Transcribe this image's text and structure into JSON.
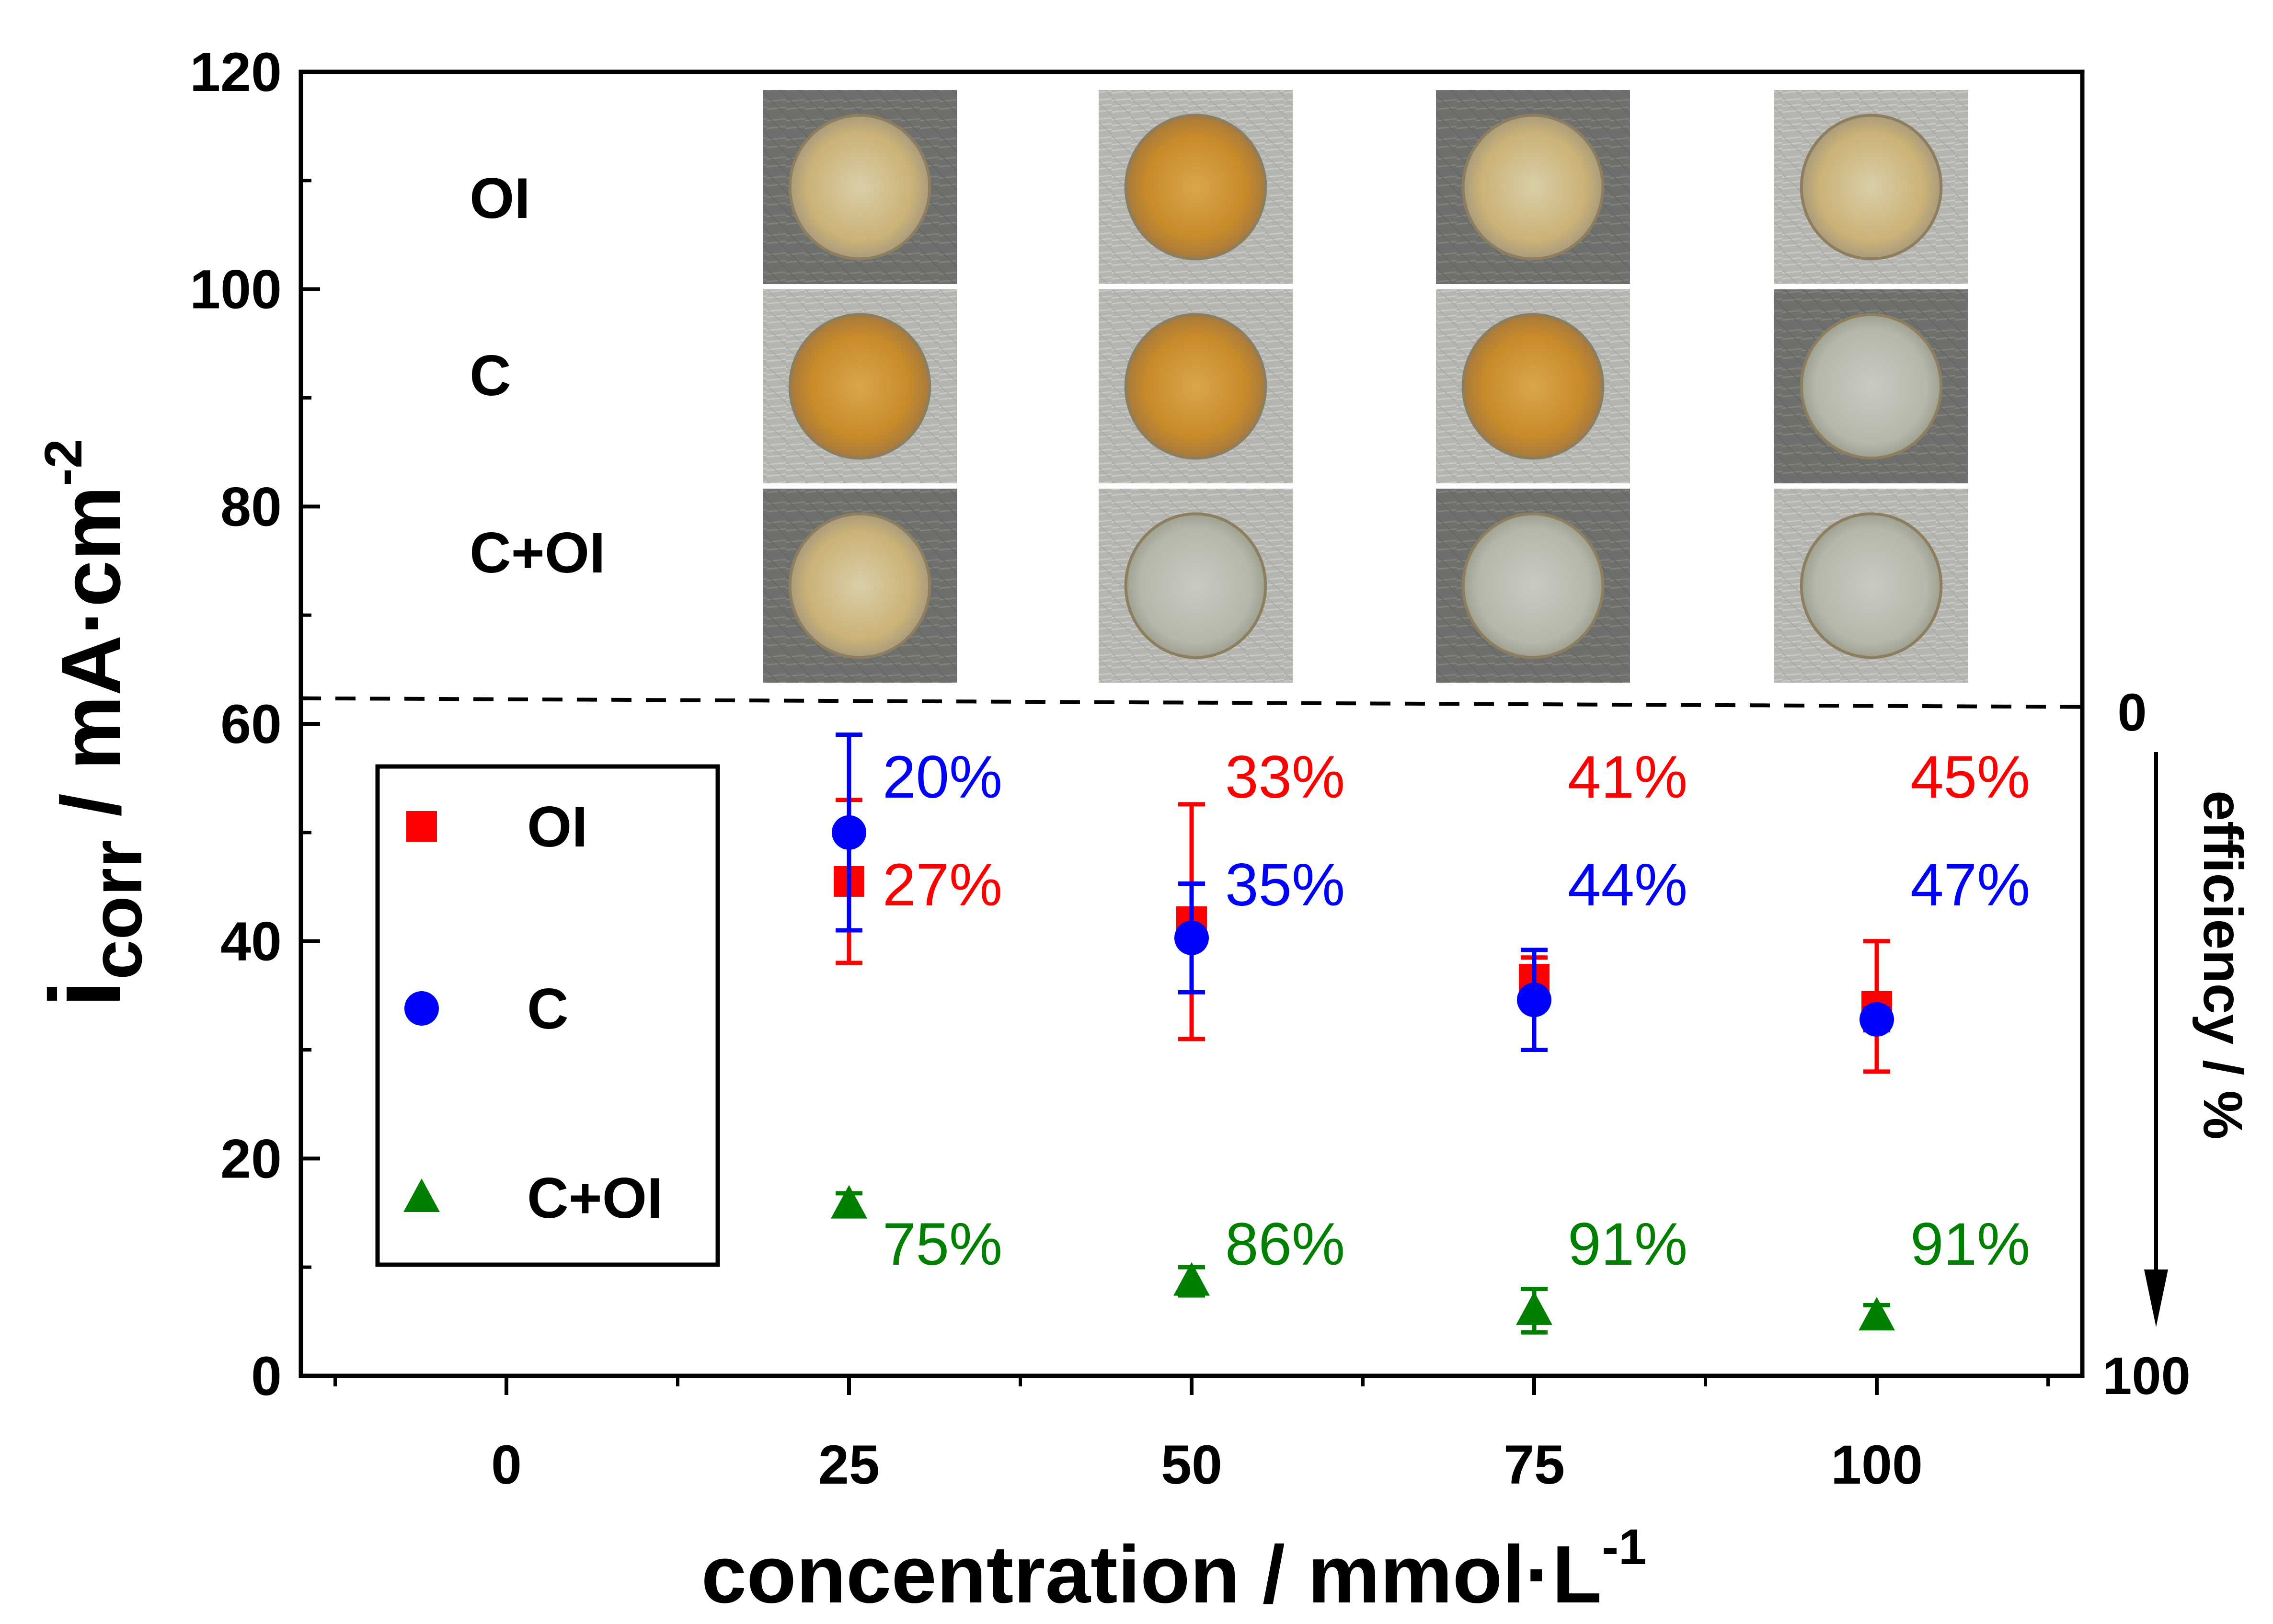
{
  "chart_data": {
    "type": "scatter",
    "title": "",
    "xlabel": {
      "main": "concentration / mmol·L",
      "sup": "-1"
    },
    "ylabel": {
      "main": "i",
      "sub": "corr",
      "rest": " / mA·cm",
      "sup": "-2"
    },
    "right_axis": {
      "label": "efficiency / %",
      "top_value": "0",
      "bottom_value": "100",
      "zero_at": 62
    },
    "xlim": [
      -15,
      115
    ],
    "ylim": [
      0,
      120
    ],
    "x_ticks": [
      0,
      25,
      50,
      75,
      100
    ],
    "y_ticks": [
      0,
      20,
      40,
      60,
      80,
      100,
      120
    ],
    "series": [
      {
        "name": "OI",
        "marker": "square",
        "color": "#ff0000",
        "points": [
          {
            "x": 25,
            "y": 45.5,
            "err": 7.5,
            "efficiency": "27%"
          },
          {
            "x": 50,
            "y": 41.8,
            "err": 10.8,
            "efficiency": "33%"
          },
          {
            "x": 75,
            "y": 36.5,
            "err": 2.0,
            "efficiency": "41%"
          },
          {
            "x": 100,
            "y": 34.0,
            "err": 6.0,
            "efficiency": "45%"
          }
        ]
      },
      {
        "name": "C",
        "marker": "circle",
        "color": "#0000ff",
        "points": [
          {
            "x": 25,
            "y": 50.0,
            "err": 9.0,
            "efficiency": "20%"
          },
          {
            "x": 50,
            "y": 40.3,
            "err": 5.0,
            "efficiency": "35%"
          },
          {
            "x": 75,
            "y": 34.6,
            "err": 4.6,
            "efficiency": "44%"
          },
          {
            "x": 100,
            "y": 32.8,
            "err": 1.0,
            "efficiency": "47%"
          }
        ]
      },
      {
        "name": "C+OI",
        "marker": "triangle",
        "color": "#008000",
        "points": [
          {
            "x": 25,
            "y": 15.8,
            "err": 1.0,
            "efficiency": "75%"
          },
          {
            "x": 50,
            "y": 8.7,
            "err": 1.3,
            "efficiency": "86%"
          },
          {
            "x": 75,
            "y": 6.0,
            "err": 2.0,
            "efficiency": "91%"
          },
          {
            "x": 100,
            "y": 5.5,
            "err": 1.0,
            "efficiency": "91%"
          }
        ]
      }
    ],
    "legend": {
      "position": "lower-left",
      "entries": [
        "OI",
        "C",
        "C+OI"
      ]
    },
    "inset_photos": {
      "row_labels": [
        "OI",
        "C",
        "C+OI"
      ],
      "columns": [
        "25",
        "50",
        "75",
        "100"
      ],
      "description_free": true
    }
  }
}
